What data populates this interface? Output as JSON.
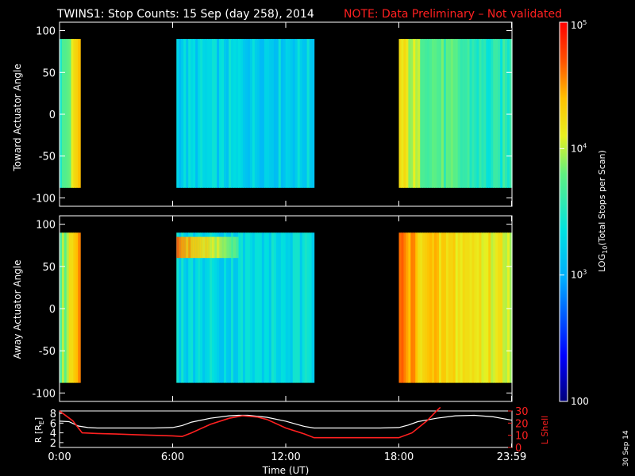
{
  "title": {
    "main": "TWINS1: Stop Counts: 15 Sep (day 258), 2014",
    "note": "NOTE: Data Preliminary – Not validated",
    "note_color": "#ff2020"
  },
  "footer_date": "30 Sep 14",
  "chart_data": [
    {
      "type": "heatmap",
      "name": "toward",
      "ylabel": "Toward Actuator Angle",
      "xlim": [
        0,
        24
      ],
      "ylim": [
        -110,
        110
      ],
      "data_ylim": [
        -88,
        90
      ],
      "yticks": [
        -100,
        -50,
        0,
        50,
        100
      ],
      "segments": [
        {
          "start": 0.0,
          "end": 1.1,
          "level_log10": [
            3.55,
            3.65,
            3.8,
            4.0,
            4.25,
            4.45
          ]
        },
        {
          "start": 6.2,
          "end": 13.5,
          "level_log10": 3.25
        },
        {
          "start": 18.0,
          "end": 24.0,
          "level_log10": [
            4.2,
            3.85,
            3.7,
            3.6,
            3.45,
            3.55
          ]
        }
      ]
    },
    {
      "type": "heatmap",
      "name": "away",
      "ylabel": "Away Actuator Angle",
      "xlim": [
        0,
        24
      ],
      "ylim": [
        -110,
        110
      ],
      "data_ylim": [
        -88,
        90
      ],
      "yticks": [
        -100,
        -50,
        0,
        50,
        100
      ],
      "segments": [
        {
          "start": 0.0,
          "end": 1.1,
          "level_log10": [
            3.7,
            3.85,
            4.0,
            4.25,
            4.5,
            4.65
          ]
        },
        {
          "start": 6.2,
          "end": 13.5,
          "level_log10": 3.3,
          "band": {
            "angle_min": 60,
            "angle_max": 85,
            "level_log10": 4.6
          }
        },
        {
          "start": 18.0,
          "end": 24.0,
          "level_log10": [
            4.6,
            4.35,
            4.25,
            4.2,
            4.15,
            4.1
          ]
        }
      ]
    },
    {
      "type": "line",
      "name": "orbit",
      "xlabel": "Time (UT)",
      "xlim": [
        0,
        24
      ],
      "xticks": [
        "0:00",
        "6:00",
        "12:00",
        "18:00",
        "23:59"
      ],
      "xtick_values": [
        0,
        6,
        12,
        18,
        23.98
      ],
      "y_left": {
        "label": "R [R",
        "label_sub": "E",
        "label_close": "]",
        "ticks": [
          2,
          4,
          6,
          8
        ],
        "ylim": [
          1,
          8.5
        ],
        "color": "#ffffff"
      },
      "y_right": {
        "label": "L Shell",
        "ticks": [
          0,
          10,
          20,
          30
        ],
        "ylim": [
          0,
          30
        ],
        "color": "#ff2020"
      },
      "series": [
        {
          "name": "R",
          "axis": "left",
          "color": "#ffffff",
          "x": [
            0,
            0.5,
            1.0,
            1.5,
            2,
            3,
            4,
            5,
            6,
            6.5,
            7,
            8,
            9,
            9.5,
            10,
            11,
            12,
            13,
            13.5,
            14,
            15,
            16,
            17,
            18,
            18.5,
            19,
            20,
            21,
            22,
            23,
            24
          ],
          "y": [
            6.4,
            6.3,
            5.4,
            5.1,
            5.0,
            5.0,
            5.0,
            5.0,
            5.1,
            5.5,
            6.2,
            7.0,
            7.5,
            7.6,
            7.6,
            7.2,
            6.4,
            5.3,
            5.0,
            5.0,
            5.0,
            5.0,
            5.0,
            5.1,
            5.6,
            6.3,
            7.0,
            7.5,
            7.6,
            7.3,
            6.6
          ]
        },
        {
          "name": "L Shell",
          "axis": "right",
          "color": "#ff2020",
          "x": [
            0,
            0.7,
            1.2,
            2,
            3,
            4,
            5,
            6,
            6.5,
            7,
            8,
            9,
            9.7,
            10.5,
            11,
            12,
            13,
            13.5,
            14,
            15,
            16,
            17,
            18,
            18.7,
            19.5,
            20,
            20.2
          ],
          "y": [
            30,
            22,
            12,
            11.5,
            11,
            10.5,
            10,
            9.5,
            9,
            12,
            19,
            24,
            26,
            25,
            23,
            16,
            11,
            8,
            8,
            8,
            8,
            8,
            8,
            12,
            22,
            30,
            33
          ]
        }
      ]
    }
  ],
  "colorbar": {
    "label_pre": "LOG",
    "label_sub": "10",
    "label_post": "(Total Stops per Scan)",
    "range_log10": [
      2,
      5
    ],
    "ticks": [
      {
        "base": "10",
        "exp": "5",
        "value": 5
      },
      {
        "base": "10",
        "exp": "4",
        "value": 4
      },
      {
        "base": "10",
        "exp": "3",
        "value": 3
      },
      {
        "base": "",
        "exp": "",
        "text": "100",
        "value": 2
      }
    ]
  }
}
